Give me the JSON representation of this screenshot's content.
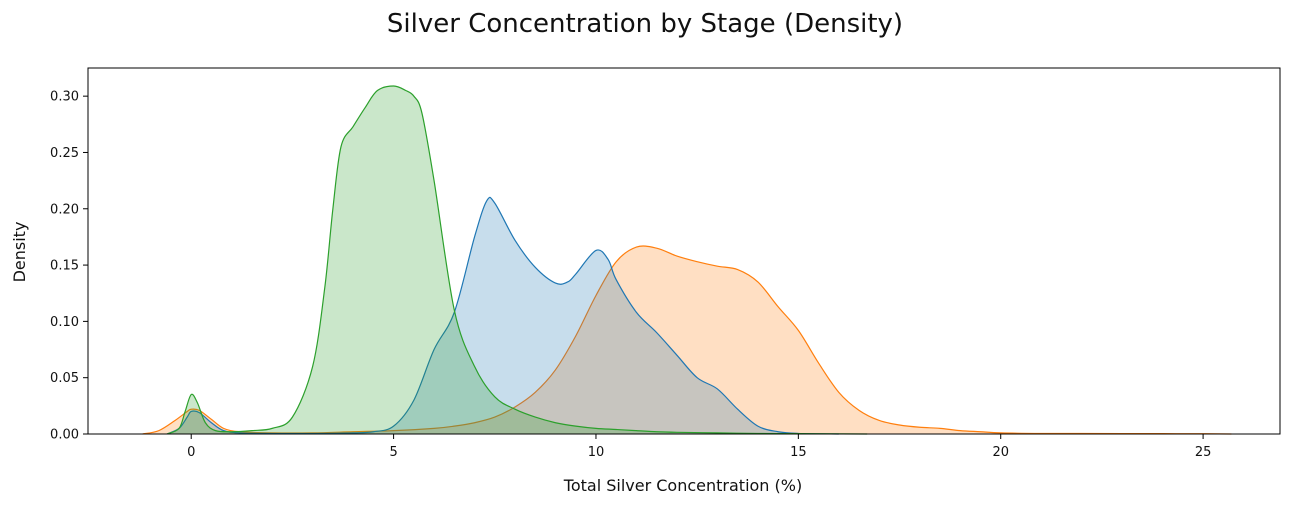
{
  "chart_data": {
    "type": "area",
    "title": "Silver Concentration by Stage (Density)",
    "xlabel": "Total Silver Concentration (%)",
    "ylabel": "Density",
    "xlim": [
      -2.55,
      26.9
    ],
    "ylim": [
      0,
      0.325
    ],
    "xticks": [
      0,
      5,
      10,
      15,
      20,
      25
    ],
    "yticks": [
      0.0,
      0.05,
      0.1,
      0.15,
      0.2,
      0.25,
      0.3
    ],
    "xtick_labels": [
      "0",
      "5",
      "10",
      "15",
      "20",
      "25"
    ],
    "ytick_labels": [
      "0.00",
      "0.05",
      "0.10",
      "0.15",
      "0.20",
      "0.25",
      "0.30"
    ],
    "grid": false,
    "legend": "none",
    "series": [
      {
        "color": "#ff7f0e",
        "points": [
          [
            -1.2,
            0.0
          ],
          [
            -0.8,
            0.003
          ],
          [
            -0.4,
            0.012
          ],
          [
            -0.1,
            0.02
          ],
          [
            0.0,
            0.022
          ],
          [
            0.2,
            0.021
          ],
          [
            0.5,
            0.013
          ],
          [
            0.8,
            0.005
          ],
          [
            1.2,
            0.002
          ],
          [
            2.0,
            0.001
          ],
          [
            3.0,
            0.001
          ],
          [
            4.0,
            0.002
          ],
          [
            5.0,
            0.003
          ],
          [
            6.0,
            0.005
          ],
          [
            6.5,
            0.007
          ],
          [
            7.0,
            0.01
          ],
          [
            7.5,
            0.015
          ],
          [
            8.0,
            0.024
          ],
          [
            8.5,
            0.037
          ],
          [
            9.0,
            0.057
          ],
          [
            9.5,
            0.087
          ],
          [
            10.0,
            0.123
          ],
          [
            10.5,
            0.153
          ],
          [
            11.0,
            0.166
          ],
          [
            11.5,
            0.165
          ],
          [
            12.0,
            0.158
          ],
          [
            12.5,
            0.153
          ],
          [
            13.0,
            0.149
          ],
          [
            13.5,
            0.146
          ],
          [
            14.0,
            0.135
          ],
          [
            14.5,
            0.113
          ],
          [
            15.0,
            0.092
          ],
          [
            15.5,
            0.063
          ],
          [
            16.0,
            0.037
          ],
          [
            16.5,
            0.021
          ],
          [
            17.0,
            0.012
          ],
          [
            17.5,
            0.008
          ],
          [
            18.0,
            0.006
          ],
          [
            18.5,
            0.005
          ],
          [
            19.0,
            0.003
          ],
          [
            19.5,
            0.002
          ],
          [
            20.0,
            0.001
          ],
          [
            21.0,
            0.0005
          ],
          [
            22.0,
            0.0005
          ],
          [
            23.0,
            0.0004
          ],
          [
            24.0,
            0.0003
          ],
          [
            25.0,
            0.0002
          ],
          [
            25.7,
            0.0
          ]
        ]
      },
      {
        "color": "#1f77b4",
        "points": [
          [
            -0.6,
            0.0
          ],
          [
            -0.3,
            0.005
          ],
          [
            -0.1,
            0.015
          ],
          [
            0.0,
            0.02
          ],
          [
            0.2,
            0.019
          ],
          [
            0.5,
            0.01
          ],
          [
            0.8,
            0.003
          ],
          [
            1.2,
            0.001
          ],
          [
            2.0,
            0.0005
          ],
          [
            3.0,
            0.0005
          ],
          [
            4.0,
            0.001
          ],
          [
            4.5,
            0.002
          ],
          [
            5.0,
            0.007
          ],
          [
            5.5,
            0.03
          ],
          [
            6.0,
            0.075
          ],
          [
            6.5,
            0.108
          ],
          [
            7.0,
            0.175
          ],
          [
            7.3,
            0.207
          ],
          [
            7.5,
            0.205
          ],
          [
            8.0,
            0.172
          ],
          [
            8.5,
            0.148
          ],
          [
            9.0,
            0.134
          ],
          [
            9.3,
            0.135
          ],
          [
            9.5,
            0.142
          ],
          [
            10.0,
            0.163
          ],
          [
            10.3,
            0.155
          ],
          [
            10.5,
            0.137
          ],
          [
            11.0,
            0.108
          ],
          [
            11.5,
            0.09
          ],
          [
            12.0,
            0.07
          ],
          [
            12.5,
            0.05
          ],
          [
            13.0,
            0.04
          ],
          [
            13.5,
            0.022
          ],
          [
            14.0,
            0.007
          ],
          [
            14.5,
            0.002
          ],
          [
            15.0,
            0.0005
          ],
          [
            16.0,
            0.0
          ]
        ]
      },
      {
        "color": "#2ca02c",
        "points": [
          [
            -0.6,
            0.0
          ],
          [
            -0.3,
            0.005
          ],
          [
            -0.15,
            0.02
          ],
          [
            0.0,
            0.035
          ],
          [
            0.15,
            0.028
          ],
          [
            0.35,
            0.01
          ],
          [
            0.6,
            0.003
          ],
          [
            1.0,
            0.002
          ],
          [
            1.5,
            0.003
          ],
          [
            2.0,
            0.005
          ],
          [
            2.5,
            0.015
          ],
          [
            3.0,
            0.06
          ],
          [
            3.3,
            0.13
          ],
          [
            3.5,
            0.2
          ],
          [
            3.7,
            0.255
          ],
          [
            4.0,
            0.273
          ],
          [
            4.3,
            0.29
          ],
          [
            4.6,
            0.305
          ],
          [
            5.0,
            0.309
          ],
          [
            5.3,
            0.305
          ],
          [
            5.5,
            0.3
          ],
          [
            5.7,
            0.285
          ],
          [
            6.0,
            0.225
          ],
          [
            6.5,
            0.11
          ],
          [
            7.0,
            0.06
          ],
          [
            7.5,
            0.033
          ],
          [
            8.0,
            0.022
          ],
          [
            8.5,
            0.015
          ],
          [
            9.0,
            0.01
          ],
          [
            9.5,
            0.007
          ],
          [
            10.0,
            0.005
          ],
          [
            10.5,
            0.004
          ],
          [
            11.0,
            0.003
          ],
          [
            11.5,
            0.002
          ],
          [
            12.0,
            0.0015
          ],
          [
            13.0,
            0.001
          ],
          [
            14.0,
            0.0005
          ],
          [
            15.0,
            0.0003
          ],
          [
            16.0,
            0.0001
          ],
          [
            16.7,
            0.0
          ]
        ]
      }
    ]
  }
}
